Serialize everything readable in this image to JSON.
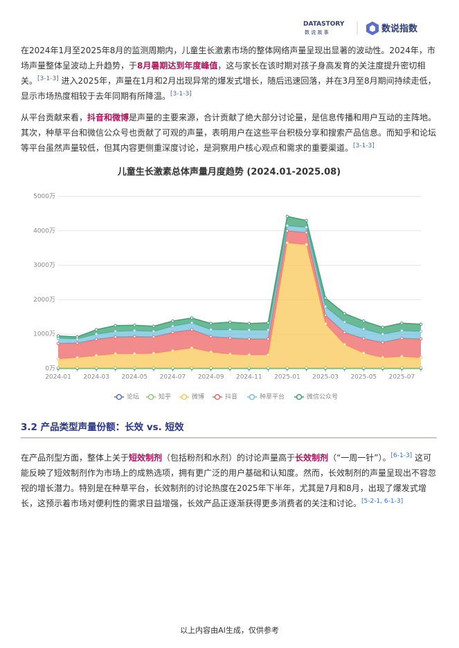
{
  "header": {
    "logo": "DATASTORY",
    "logo_sub": "数 说 故 事",
    "brand": "数说指数"
  },
  "paragraphs": [
    [
      "在2024年1月至2025年8月的监测周期内，儿童生长激素市场的整体网络声量呈现出显著的波动性。2024年，市场声量整体呈波动上升趋势，于",
      "8月暑期达到年度峰值",
      "，这与家长在该时期对孩子身高发育的关注度提升密切相关。",
      "[3-1-3]",
      " 进入2025年，声量在1月和2月出现异常的爆发式增长，随后迅速回落，并在3月至8月期间持续走低，显示市场热度相较于去年同期有所降温。",
      "[3-1-3]"
    ],
    [
      "从平台贡献来看，",
      "抖音和微博",
      "是声量的主要来源，合计贡献了绝大部分讨论量，是信息传播和用户互动的主阵地。其次，种草平台和微信公众号也贡献了可观的声量，表明用户在这些平台积极分享和搜索产品信息。而知乎和论坛等平台虽然声量较低，但其内容更侧重深度讨论，是洞察用户核心观点和需求的重要渠道。",
      "[3-1-3]"
    ]
  ],
  "chart_data": {
    "type": "stacked-area",
    "title": "儿童生长激素总体声量月度趋势 (2024.01-2025.08)",
    "categories": [
      "2024-01",
      null,
      "2024-03",
      null,
      "2024-05",
      null,
      "2024-07",
      null,
      "2024-09",
      null,
      "2024-11",
      null,
      "2025-01",
      null,
      "2025-03",
      null,
      "2025-05",
      null,
      "2025-07",
      null
    ],
    "series": [
      {
        "name": "论坛",
        "color": "#5470c6",
        "values": [
          5,
          5,
          5,
          5,
          5,
          5,
          5,
          5,
          5,
          5,
          5,
          5,
          5,
          5,
          5,
          5,
          5,
          5,
          5,
          5
        ]
      },
      {
        "name": "知乎",
        "color": "#91cc75",
        "values": [
          15,
          15,
          15,
          15,
          15,
          15,
          15,
          15,
          15,
          15,
          15,
          15,
          15,
          15,
          15,
          15,
          15,
          15,
          15,
          15
        ]
      },
      {
        "name": "微博",
        "color": "#fac858",
        "values": [
          260,
          300,
          360,
          410,
          410,
          420,
          500,
          580,
          460,
          400,
          380,
          380,
          3630,
          3580,
          1280,
          680,
          430,
          300,
          330,
          300
        ]
      },
      {
        "name": "抖音",
        "color": "#ee6666",
        "values": [
          450,
          420,
          470,
          490,
          500,
          480,
          530,
          530,
          450,
          470,
          460,
          460,
          350,
          350,
          250,
          350,
          420,
          440,
          530,
          540
        ]
      },
      {
        "name": "种草平台",
        "color": "#73c0de",
        "values": [
          150,
          120,
          150,
          160,
          170,
          160,
          180,
          200,
          200,
          240,
          260,
          260,
          150,
          150,
          250,
          300,
          280,
          240,
          220,
          220
        ]
      },
      {
        "name": "微信公众号",
        "color": "#3ba272",
        "values": [
          70,
          60,
          130,
          170,
          160,
          150,
          150,
          140,
          180,
          220,
          190,
          210,
          270,
          200,
          250,
          250,
          230,
          200,
          220,
          210
        ]
      }
    ],
    "ylim": [
      0,
      5000
    ],
    "yticks": [
      {
        "value": 0,
        "label": "0万"
      },
      {
        "value": 1000,
        "label": "1000万"
      },
      {
        "value": 2000,
        "label": "2000万"
      },
      {
        "value": 3000,
        "label": "3000万"
      },
      {
        "value": 4000,
        "label": "4000万"
      },
      {
        "value": 5000,
        "label": "5000万"
      }
    ],
    "grid": true
  },
  "section": {
    "title": "3.2 产品类型声量份额：长效 vs. 短效",
    "paragraph": [
      "在产品剂型方面，整体上关于",
      "短效制剂",
      "（包括粉剂和水剂）的讨论声量高于",
      "长效制剂",
      "（“一周一针”）。",
      "[6-1-3]",
      " 这可能反映了短效制剂作为市场上的成熟选项，拥有更广泛的用户基础和认知度。然而，长效制剂的声量呈现出不容忽视的增长潜力。特别是在种草平台，长效制剂的讨论热度在2025年下半年，尤其是7月和8月，出现了爆发式增长，这预示着市场对便利性的需求日益增强，长效产品正逐渐获得更多消费者的关注和讨论。",
      "[5-2-1, 6-1-3]"
    ]
  },
  "footer": "以上内容由AI生成，仅供参考"
}
